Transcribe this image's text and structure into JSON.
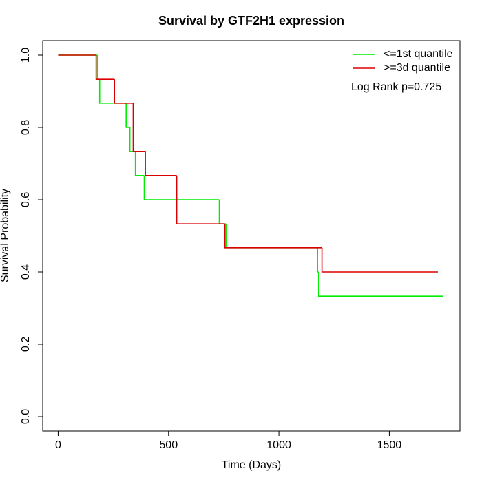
{
  "chart_data": {
    "type": "step",
    "title": "Survival by GTF2H1 expression",
    "x_label": "Time (Days)",
    "y_label": "Survival Probability",
    "annotation": "Log Rank p=0.725",
    "legend": "top-right",
    "series": [
      {
        "name": "<=1st quantile",
        "color": "#00ee00",
        "x": [
          0,
          178,
          188,
          308,
          325,
          350,
          390,
          730,
          760,
          1175,
          1180,
          1745
        ],
        "values": [
          1.0,
          0.933,
          0.867,
          0.8,
          0.733,
          0.667,
          0.6,
          0.533,
          0.467,
          0.4,
          0.333,
          0.333
        ]
      },
      {
        "name": ">=3d quantile",
        "color": "#dd0000",
        "x": [
          0,
          172,
          255,
          340,
          395,
          537,
          755,
          1195,
          1720
        ],
        "values": [
          1.0,
          0.933,
          0.867,
          0.733,
          0.667,
          0.533,
          0.467,
          0.4,
          0.4
        ]
      }
    ],
    "xlim": [
      -70,
      1820
    ],
    "ylim": [
      -0.04,
      1.04
    ],
    "xticks": [
      0,
      500,
      1000,
      1500
    ],
    "yticks": [
      {
        "value": 0,
        "label": "0.0"
      },
      {
        "value": 0.2,
        "label": "0.2"
      },
      {
        "value": 0.4,
        "label": "0.4"
      },
      {
        "value": 0.6,
        "label": "0.6"
      },
      {
        "value": 0.8,
        "label": "0.8"
      },
      {
        "value": 1,
        "label": "1.0"
      }
    ]
  }
}
